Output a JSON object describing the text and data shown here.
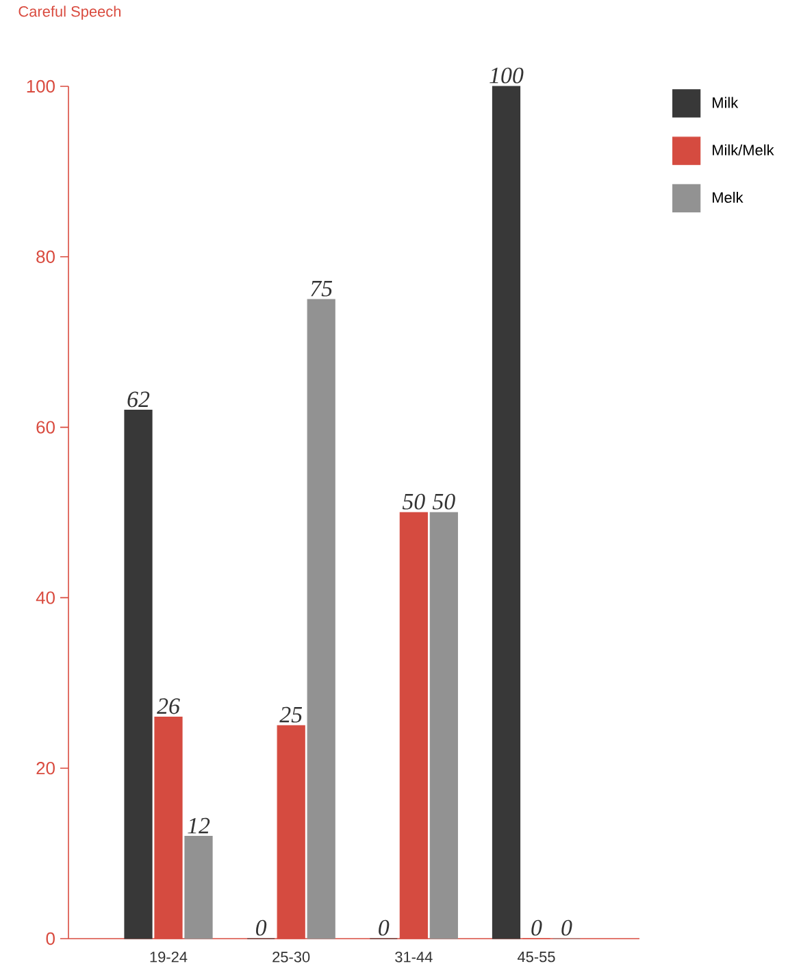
{
  "chart_data": {
    "type": "bar",
    "title": "Careful Speech",
    "categories": [
      "19-24",
      "25-30",
      "31-44",
      "45-55"
    ],
    "series": [
      {
        "name": "Milk",
        "color": "#383838",
        "values": [
          62,
          0,
          0,
          100
        ]
      },
      {
        "name": "Milk/Melk",
        "color": "#d54b40",
        "values": [
          26,
          25,
          50,
          0
        ]
      },
      {
        "name": "Melk",
        "color": "#929292",
        "values": [
          12,
          75,
          50,
          0
        ]
      }
    ],
    "ylim": [
      0,
      100
    ],
    "yticks": [
      0,
      20,
      40,
      60,
      80,
      100
    ],
    "data_labels": true,
    "legend": "top right",
    "grid": false
  }
}
